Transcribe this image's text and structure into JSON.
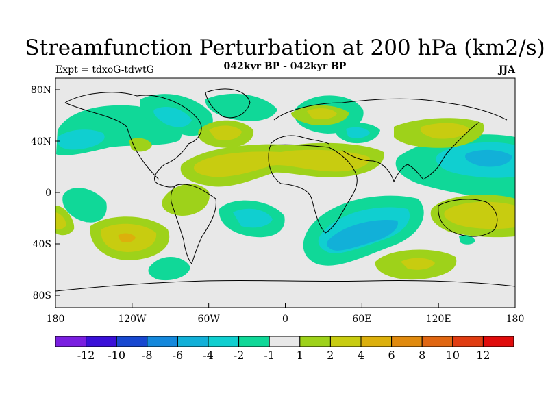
{
  "header": {
    "title": "Streamfunction Perturbation at 200 hPa (km2/s)",
    "subtitle": "042kyr BP - 042kyr BP",
    "left_label": "Expt = tdxoG-tdwtG",
    "season": "JJA"
  },
  "axes": {
    "x_ticks": [
      "180",
      "120W",
      "60W",
      "0",
      "60E",
      "120E",
      "180"
    ],
    "y_ticks": [
      "80N",
      "40N",
      "0",
      "40S",
      "80S"
    ]
  },
  "colorbar": {
    "colors": [
      "#7a1fe0",
      "#3a10d8",
      "#1848d0",
      "#1488dc",
      "#12b0d8",
      "#10cfd0",
      "#10d898",
      "#e8e8e8",
      "#9ed21a",
      "#c8cc10",
      "#dcb00c",
      "#e08a0e",
      "#e06612",
      "#e03c12",
      "#e00c0c"
    ],
    "labels": [
      "-12",
      "-10",
      "-8",
      "-6",
      "-4",
      "-2",
      "-1",
      "1",
      "2",
      "4",
      "6",
      "8",
      "10",
      "12"
    ]
  },
  "map_colors": {
    "background": "#e8e8e8",
    "neg_1": "#10d898",
    "neg_2": "#10cfd0",
    "neg_4": "#12b0d8",
    "pos_1": "#9ed21a",
    "pos_2": "#c8cc10",
    "pos_4": "#dcb00c"
  }
}
